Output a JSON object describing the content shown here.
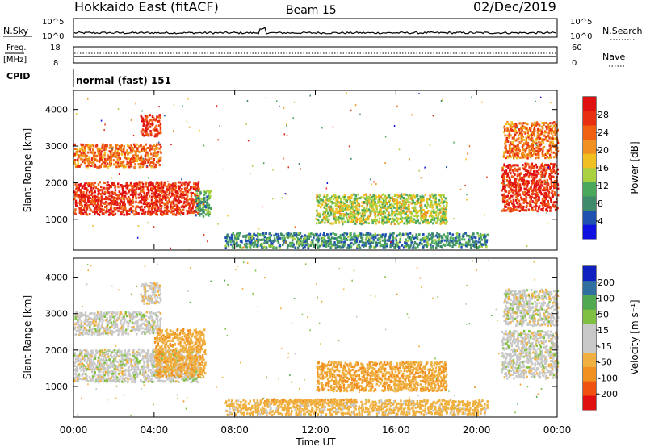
{
  "header": {
    "station": "Hokkaido East (fitACF)",
    "beam": "Beam 15",
    "date": "02/Dec/2019"
  },
  "top_panels": {
    "nsky_label": "N.Sky",
    "nsearch_label": "N.Search",
    "nsky_ticks": [
      "10^5",
      "10^0"
    ],
    "nsearch_ticks": [
      "10^5",
      "10^0"
    ],
    "freq_label_1": "Freq.",
    "freq_label_2": "[MHz]",
    "freq_ticks": [
      "18",
      "8"
    ],
    "nave_label": "Nave",
    "nave_ticks": [
      "60",
      "0"
    ],
    "cpid_label": "CPID",
    "cpid_text": "normal (fast) 151"
  },
  "colors": {
    "power_scale": [
      "#1010e0",
      "#2050b0",
      "#3f8a6a",
      "#4aa85a",
      "#a8d040",
      "#f0c020",
      "#f09020",
      "#f06010",
      "#e83010",
      "#e01010"
    ],
    "velocity_scale": [
      "#e01010",
      "#f05010",
      "#f09020",
      "#f0b040",
      "#c8c8c8",
      "#c8c8c8",
      "#80c040",
      "#50a850",
      "#3070a0",
      "#1020c0"
    ]
  },
  "chart_data": [
    {
      "type": "heatmap",
      "parameter": "Power",
      "ylabel": "Slant Range [km]",
      "yticks": [
        1000,
        2000,
        3000,
        4000
      ],
      "ylim": [
        180,
        4500
      ],
      "xlim": [
        0,
        24
      ],
      "colorbar_label": "Power [dB]",
      "colorbar_ticks": [
        "4",
        "8",
        "12",
        "16",
        "20",
        "24",
        "28"
      ],
      "colorbar_range": [
        0,
        30
      ],
      "regions": [
        {
          "t0": 0.0,
          "t1": 6.2,
          "r0": 1150,
          "r1": 2050,
          "value": 26
        },
        {
          "t0": 0.0,
          "t1": 4.3,
          "r0": 2450,
          "r1": 3100,
          "value": 22
        },
        {
          "t0": 3.3,
          "t1": 4.3,
          "r0": 3300,
          "r1": 3900,
          "value": 26
        },
        {
          "t0": 6.0,
          "t1": 6.8,
          "r0": 1100,
          "r1": 1800,
          "value": 10
        },
        {
          "t0": 12.0,
          "t1": 18.5,
          "r0": 900,
          "r1": 1700,
          "value": 14
        },
        {
          "t0": 7.5,
          "t1": 20.5,
          "r0": 250,
          "r1": 650,
          "value": 8
        },
        {
          "t0": 21.2,
          "t1": 24.0,
          "r0": 1250,
          "r1": 2550,
          "value": 26
        },
        {
          "t0": 21.3,
          "t1": 24.0,
          "r0": 2700,
          "r1": 3700,
          "value": 22
        }
      ]
    },
    {
      "type": "heatmap",
      "parameter": "Velocity",
      "ylabel": "Slant Range [km]",
      "yticks": [
        1000,
        2000,
        3000,
        4000
      ],
      "ylim": [
        180,
        4500
      ],
      "xlim": [
        0,
        24
      ],
      "xlabel": "Time UT",
      "xticks": [
        "00:00",
        "04:00",
        "08:00",
        "12:00",
        "16:00",
        "20:00",
        "00:00"
      ],
      "colorbar_label": "Velocity [m s⁻¹]",
      "colorbar_ticks": [
        "-200",
        "-100",
        "-50",
        "-15",
        "15",
        "50",
        "100",
        "200"
      ],
      "colorbar_range": [
        -250,
        250
      ],
      "regions": [
        {
          "t0": 0.0,
          "t1": 6.2,
          "r0": 1150,
          "r1": 2050,
          "value": 0
        },
        {
          "t0": 0.0,
          "t1": 4.3,
          "r0": 2450,
          "r1": 3100,
          "value": 0
        },
        {
          "t0": 3.3,
          "t1": 4.3,
          "r0": 3300,
          "r1": 3900,
          "value": -10
        },
        {
          "t0": 4.0,
          "t1": 6.5,
          "r0": 1300,
          "r1": 2600,
          "value": -40
        },
        {
          "t0": 12.0,
          "t1": 18.5,
          "r0": 900,
          "r1": 1700,
          "value": -45
        },
        {
          "t0": 9.3,
          "t1": 14.0,
          "r0": 550,
          "r1": 700,
          "value": -55
        },
        {
          "t0": 7.5,
          "t1": 20.5,
          "r0": 250,
          "r1": 650,
          "value": -30
        },
        {
          "t0": 21.2,
          "t1": 24.0,
          "r0": 1250,
          "r1": 2550,
          "value": 0
        },
        {
          "t0": 21.3,
          "t1": 24.0,
          "r0": 2700,
          "r1": 3700,
          "value": 0
        }
      ]
    }
  ]
}
